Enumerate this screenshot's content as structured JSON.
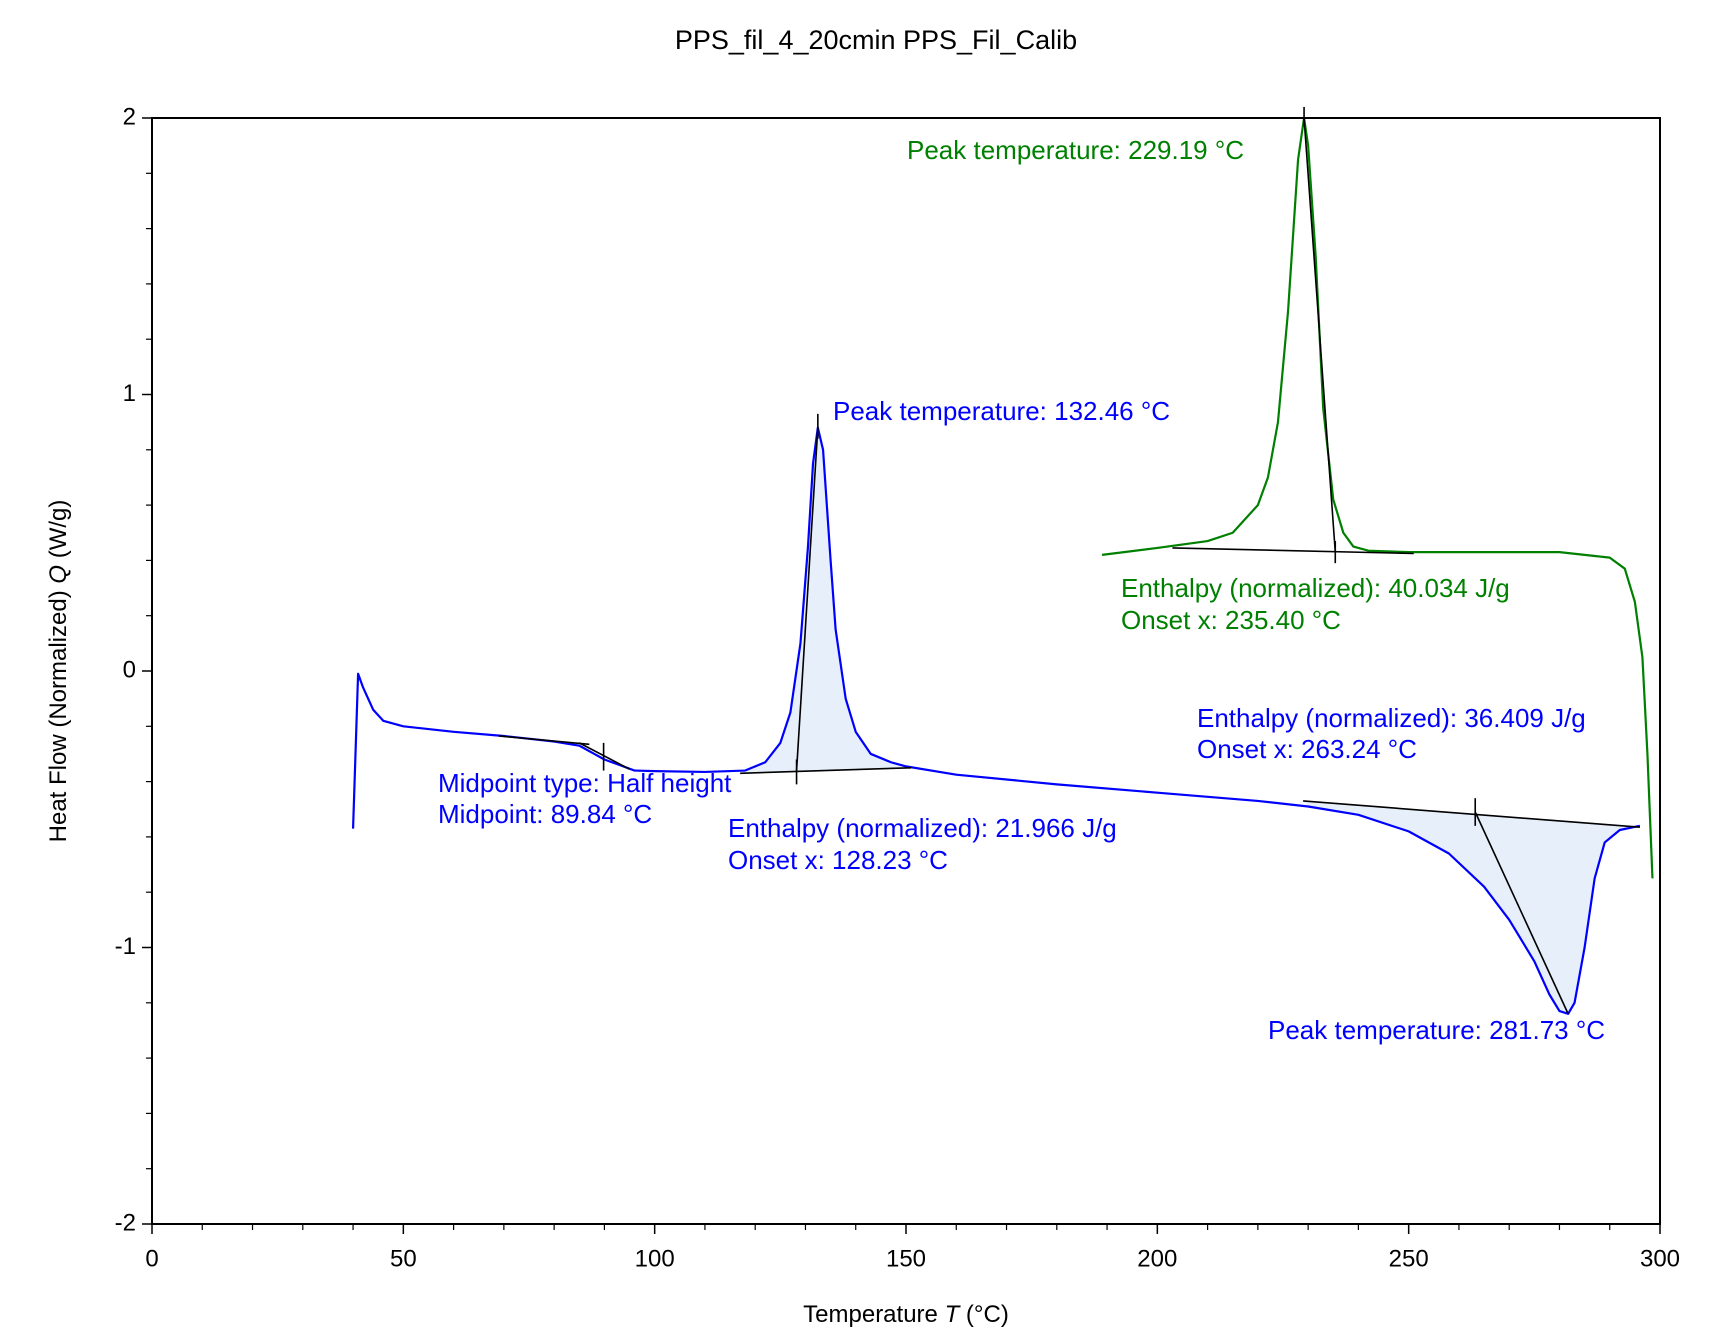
{
  "chart_data": {
    "type": "line",
    "title": "PPS_fil_4_20cmin PPS_Fil_Calib",
    "x_label": [
      "Temperature ",
      "T",
      "  (°C)"
    ],
    "y_label": [
      "Heat Flow (Normalized) ",
      "Q",
      " (W/g)"
    ],
    "xlim": [
      0,
      300
    ],
    "ylim": [
      -2,
      2
    ],
    "xticks": [
      0,
      50,
      100,
      150,
      200,
      250,
      300
    ],
    "yticks": [
      -2,
      -1,
      0,
      1,
      2
    ],
    "xminorticks": [
      10,
      20,
      30,
      40,
      60,
      70,
      80,
      90,
      110,
      120,
      130,
      140,
      160,
      170,
      180,
      190,
      210,
      220,
      230,
      240,
      260,
      270,
      280,
      290
    ],
    "yminorticks": [
      -1.8,
      -1.6,
      -1.4,
      -1.2,
      -0.8,
      -0.6,
      -0.4,
      -0.2,
      0.2,
      0.4,
      0.6,
      0.8,
      1.2,
      1.4,
      1.6,
      1.8
    ],
    "series": [
      {
        "color": "#0000ff",
        "x": [
          40,
          41,
          42,
          44,
          46,
          50,
          60,
          70,
          80,
          85,
          88,
          90,
          93,
          96,
          100,
          110,
          118,
          122,
          125,
          127,
          129,
          130.5,
          131.5,
          132.46,
          133.5,
          135,
          136,
          138,
          140,
          143,
          147,
          150,
          160,
          180,
          200,
          220,
          230,
          240,
          250,
          258,
          265,
          270,
          275,
          278,
          280,
          281.73,
          283,
          285,
          287,
          289,
          292,
          296
        ],
        "values": [
          -0.57,
          -0.01,
          -0.06,
          -0.14,
          -0.18,
          -0.2,
          -0.22,
          -0.235,
          -0.255,
          -0.27,
          -0.3,
          -0.32,
          -0.34,
          -0.36,
          -0.362,
          -0.365,
          -0.36,
          -0.33,
          -0.26,
          -0.15,
          0.1,
          0.45,
          0.75,
          0.88,
          0.8,
          0.4,
          0.15,
          -0.1,
          -0.22,
          -0.3,
          -0.33,
          -0.345,
          -0.375,
          -0.41,
          -0.44,
          -0.47,
          -0.49,
          -0.52,
          -0.58,
          -0.66,
          -0.78,
          -0.9,
          -1.05,
          -1.17,
          -1.23,
          -1.24,
          -1.2,
          -1.0,
          -0.75,
          -0.62,
          -0.575,
          -0.56
        ]
      },
      {
        "color": "#008000",
        "x": [
          298.5,
          297.5,
          296.5,
          295,
          293,
          290,
          280,
          260,
          250,
          242,
          239,
          237,
          235,
          233,
          231.5,
          230,
          229.19,
          228,
          226,
          224,
          222,
          220,
          215,
          210,
          200,
          189
        ],
        "values": [
          -0.75,
          -0.3,
          0.05,
          0.25,
          0.37,
          0.41,
          0.43,
          0.43,
          0.43,
          0.435,
          0.45,
          0.5,
          0.62,
          0.95,
          1.5,
          1.9,
          2.0,
          1.85,
          1.3,
          0.9,
          0.7,
          0.6,
          0.5,
          0.47,
          0.445,
          0.42
        ]
      }
    ],
    "guides": [
      {
        "x": [
          69,
          87
        ],
        "values": [
          -0.235,
          -0.265
        ],
        "shade": false
      },
      {
        "x": [
          85,
          95
        ],
        "values": [
          -0.26,
          -0.355
        ],
        "shade": false
      },
      {
        "x": [
          89.84,
          89.84
        ],
        "values": [
          -0.26,
          -0.36
        ],
        "shade": false
      },
      {
        "x": [
          117,
          151
        ],
        "values": [
          -0.37,
          -0.35
        ],
        "shade": true
      },
      {
        "x": [
          128.23,
          132.46
        ],
        "values": [
          -0.36,
          0.88
        ],
        "shade": false
      },
      {
        "x": [
          128.23,
          128.23
        ],
        "values": [
          -0.32,
          -0.41
        ],
        "shade": false
      },
      {
        "x": [
          132.46,
          132.46
        ],
        "values": [
          0.84,
          0.93
        ],
        "shade": false
      },
      {
        "x": [
          203,
          251
        ],
        "values": [
          0.445,
          0.425
        ],
        "shade": false
      },
      {
        "x": [
          229.19,
          235.4
        ],
        "values": [
          2.0,
          0.43
        ],
        "shade": false
      },
      {
        "x": [
          235.4,
          235.4
        ],
        "values": [
          0.47,
          0.39
        ],
        "shade": false
      },
      {
        "x": [
          229.19,
          229.19
        ],
        "values": [
          1.97,
          2.04
        ],
        "shade": false
      },
      {
        "x": [
          229,
          296
        ],
        "values": [
          -0.47,
          -0.565
        ],
        "shade": true
      },
      {
        "x": [
          263.24,
          281.73
        ],
        "values": [
          -0.51,
          -1.24
        ],
        "shade": false
      },
      {
        "x": [
          263.24,
          263.24
        ],
        "values": [
          -0.46,
          -0.56
        ],
        "shade": false
      }
    ],
    "shade_color": "#e6effa",
    "annotations": [
      {
        "text": "Peak temperature: 229.19 °C",
        "color": "#008000"
      },
      {
        "text": "Peak temperature: 132.46 °C",
        "color": "#0000ff"
      },
      {
        "text": "Enthalpy (normalized): 40.034 J/g",
        "color": "#008000"
      },
      {
        "text": "Onset x: 235.40 °C",
        "color": "#008000"
      },
      {
        "text": "Enthalpy (normalized): 36.409 J/g",
        "color": "#0000ff"
      },
      {
        "text": "Onset x: 263.24 °C",
        "color": "#0000ff"
      },
      {
        "text": "Midpoint type: Half height",
        "color": "#0000ff"
      },
      {
        "text": "Midpoint: 89.84 °C",
        "color": "#0000ff"
      },
      {
        "text": "Enthalpy (normalized): 21.966 J/g",
        "color": "#0000ff"
      },
      {
        "text": "Onset x: 128.23 °C",
        "color": "#0000ff"
      },
      {
        "text": "Peak temperature: 281.73 °C",
        "color": "#0000ff"
      }
    ]
  }
}
